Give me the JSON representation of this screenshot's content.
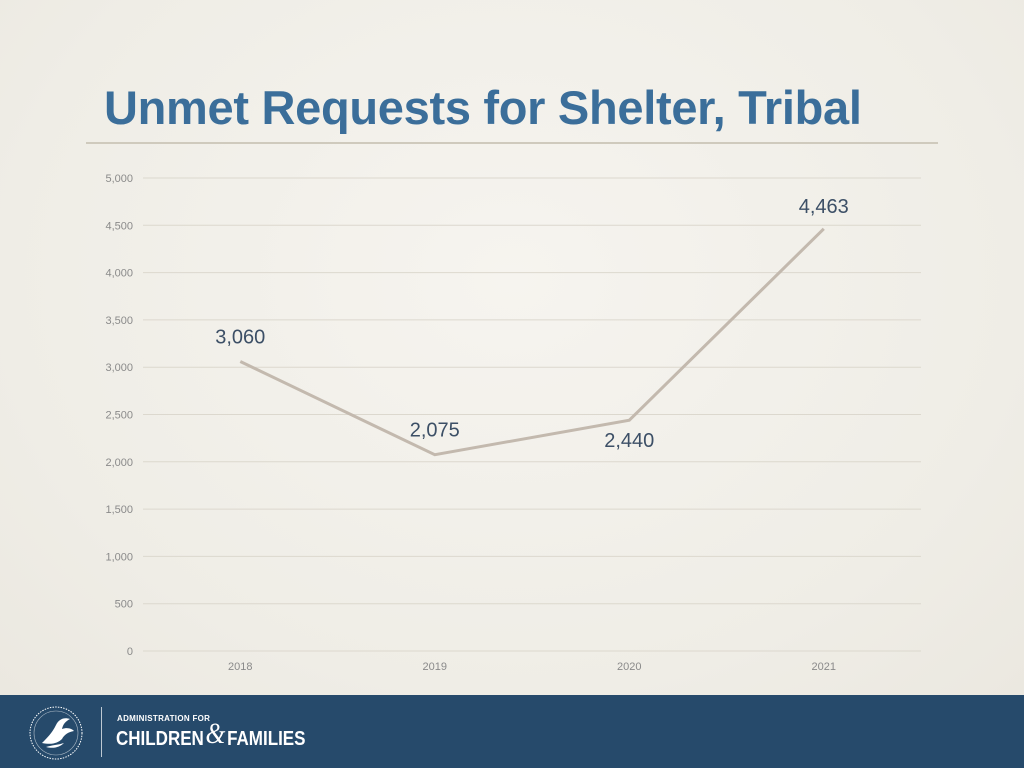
{
  "slide": {
    "title": "Unmet Requests for Shelter, Tribal"
  },
  "chart_data": {
    "type": "line",
    "title": "Unmet Requests for Shelter, Tribal",
    "x": [
      "2018",
      "2019",
      "2020",
      "2021"
    ],
    "series": [
      {
        "values": [
          3060,
          2075,
          2440,
          4463
        ],
        "labels": [
          "3,060",
          "2,075",
          "2,440",
          "4,463"
        ]
      }
    ],
    "yticks": [
      "0",
      "500",
      "1,000",
      "1,500",
      "2,000",
      "2,500",
      "3,000",
      "3,500",
      "4,000",
      "4,500",
      "5,000"
    ],
    "ylim": [
      0,
      5000
    ],
    "grid": true,
    "line_color": "#c3b9ae",
    "label_color": "#3c4f66"
  },
  "footer": {
    "agency_small": "ADMINISTRATION FOR",
    "agency_part1": "CHILDREN",
    "agency_amp": "&",
    "agency_part2": "FAMILIES",
    "seal_icon": "hhs-eagle-seal-icon",
    "bg_color": "#264a6b"
  }
}
